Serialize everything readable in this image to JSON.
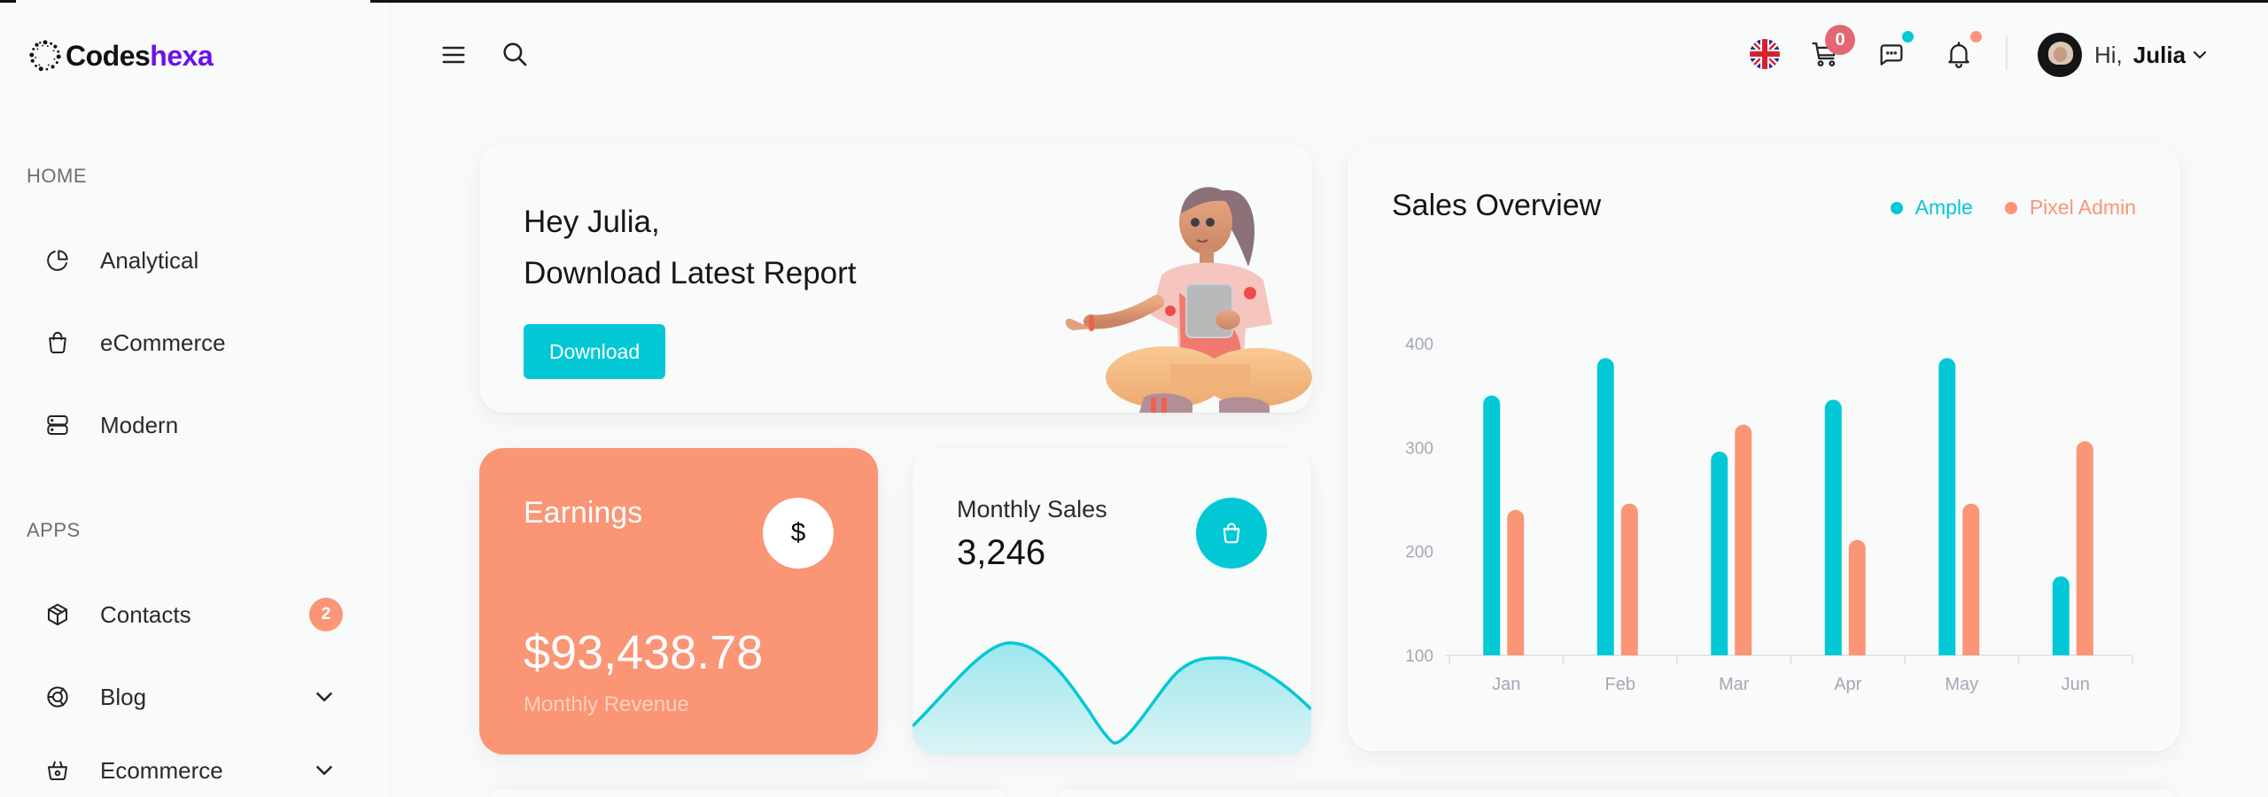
{
  "brand": {
    "name_part1": "Codes",
    "name_part2": "hexa",
    "accent": "#6b12e8"
  },
  "sidebar": {
    "sections": [
      {
        "label": "HOME",
        "items": [
          {
            "label": "Analytical",
            "icon": "pie-chart-icon"
          },
          {
            "label": "eCommerce",
            "icon": "shopping-bag-icon"
          },
          {
            "label": "Modern",
            "icon": "server-icon"
          }
        ]
      },
      {
        "label": "APPS",
        "items": [
          {
            "label": "Contacts",
            "icon": "box-icon",
            "badge": "2"
          },
          {
            "label": "Blog",
            "icon": "aperture-icon",
            "expandable": true
          },
          {
            "label": "Ecommerce",
            "icon": "basket-icon",
            "expandable": true
          }
        ]
      }
    ]
  },
  "header": {
    "menu_icon": "menu-icon",
    "search_icon": "search-icon",
    "language_icon": "uk-flag-icon",
    "cart_count": "0",
    "greeting": "Hi,",
    "user_name": "Julia"
  },
  "welcome": {
    "line1": "Hey Julia,",
    "line2": "Download Latest Report",
    "button_label": "Download"
  },
  "earnings": {
    "title": "Earnings",
    "icon": "$",
    "amount": "$93,438.78",
    "caption": "Monthly Revenue"
  },
  "monthly_sales": {
    "title": "Monthly Sales",
    "value": "3,246"
  },
  "sales_overview": {
    "title": "Sales Overview",
    "legend": [
      {
        "label": "Ample",
        "color": "#02c8d6"
      },
      {
        "label": "Pixel Admin",
        "color": "#fa9576"
      }
    ]
  },
  "colors": {
    "primary": "#02c8d6",
    "secondary": "#fa9576",
    "cart_badge": "#e46674"
  },
  "chart_data": [
    {
      "type": "bar",
      "title": "Sales Overview",
      "categories": [
        "Jan",
        "Feb",
        "Mar",
        "Apr",
        "May",
        "Jun"
      ],
      "series": [
        {
          "name": "Ample",
          "color": "#02c8d6",
          "values": [
            350,
            386,
            296,
            346,
            386,
            176
          ]
        },
        {
          "name": "Pixel Admin",
          "color": "#fa9576",
          "values": [
            240,
            246,
            322,
            211,
            246,
            306
          ]
        }
      ],
      "yticks": [
        100,
        200,
        300,
        400
      ],
      "ylim": [
        100,
        400
      ],
      "xlabel": "",
      "ylabel": "",
      "grid": false,
      "legend_position": "top-right"
    },
    {
      "type": "area",
      "title": "Monthly Sales",
      "x": [
        0,
        1,
        2,
        3,
        4,
        5,
        6
      ],
      "values": [
        30,
        85,
        55,
        5,
        60,
        75,
        40
      ],
      "series_color": "#02c8d6",
      "axes_visible": false
    }
  ]
}
